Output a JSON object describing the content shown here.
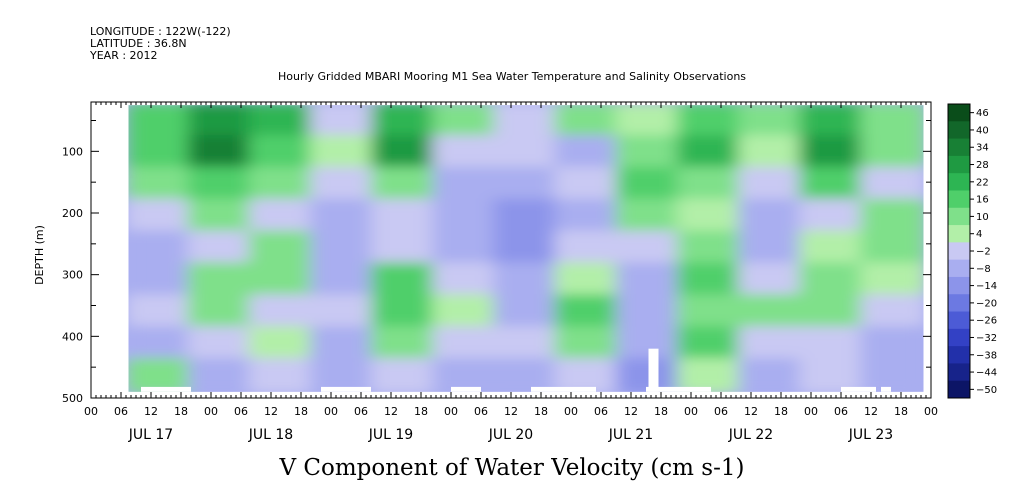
{
  "chart_data": {
    "type": "heatmap",
    "header": {
      "longitude": "LONGITUDE : 122W(-122)",
      "latitude": "LATITUDE : 36.8N",
      "year": "YEAR : 2012"
    },
    "title": "Hourly Gridded MBARI Mooring M1 Sea Water Temperature and Salinity Observations",
    "xlabel": "V Component of Water Velocity (cm s-1)",
    "ylabel": "DEPTH (m)",
    "y_ticks": [
      100,
      200,
      300,
      400,
      500
    ],
    "ylim": [
      500,
      20
    ],
    "y_inverted": true,
    "x_hour_ticks": [
      "00",
      "06",
      "12",
      "18",
      "00",
      "06",
      "12",
      "18",
      "00",
      "06",
      "12",
      "18",
      "00",
      "06",
      "12",
      "18",
      "00",
      "06",
      "12",
      "18",
      "00",
      "06",
      "12",
      "18",
      "00",
      "06",
      "12",
      "18",
      "00"
    ],
    "x_date_labels": [
      "JUL 17",
      "JUL 18",
      "JUL 19",
      "JUL 20",
      "JUL 21",
      "JUL 22",
      "JUL 23"
    ],
    "xlim_hours": [
      0,
      168
    ],
    "data_extent_hours": [
      7.5,
      166.5
    ],
    "data_extent_depth": [
      25,
      490
    ],
    "colorbar_labels": [
      "46",
      "40",
      "34",
      "28",
      "22",
      "16",
      "10",
      "4",
      "-2",
      "-8",
      "-14",
      "-20",
      "-26",
      "-32",
      "-38",
      "-44",
      "-50"
    ],
    "colorbar_colors": [
      "#0a4d1a",
      "#12672a",
      "#188035",
      "#1f9a42",
      "#2db553",
      "#4fcf6a",
      "#7fe08a",
      "#b2efa8",
      "#c9c9f3",
      "#a9aef0",
      "#8c94ea",
      "#6c79e2",
      "#4c5bd6",
      "#3341c5",
      "#2230aa",
      "#17238a",
      "#0c1566"
    ],
    "approx_cells": {
      "rows_depth_m": [
        50,
        100,
        150,
        200,
        250,
        300,
        350,
        400,
        450
      ],
      "cols_hours": [
        12,
        24,
        36,
        48,
        60,
        72,
        84,
        96,
        108,
        120,
        132,
        144,
        156
      ],
      "values": [
        [
          10,
          22,
          16,
          -4,
          18,
          4,
          -6,
          8,
          2,
          10,
          4,
          18,
          8
        ],
        [
          14,
          28,
          10,
          2,
          22,
          -4,
          -8,
          -10,
          6,
          16,
          2,
          22,
          4
        ],
        [
          6,
          10,
          4,
          -8,
          6,
          -10,
          -12,
          -6,
          10,
          8,
          -6,
          10,
          -4
        ],
        [
          -8,
          4,
          -6,
          -14,
          -4,
          -14,
          -16,
          -12,
          4,
          -2,
          -10,
          -4,
          8
        ],
        [
          -10,
          -4,
          6,
          -10,
          -8,
          -10,
          -18,
          -8,
          -6,
          4,
          -12,
          2,
          6
        ],
        [
          -12,
          6,
          4,
          -12,
          10,
          -6,
          -14,
          -2,
          -10,
          10,
          -8,
          6,
          2
        ],
        [
          -6,
          8,
          -4,
          -8,
          12,
          -2,
          -10,
          10,
          -14,
          6,
          8,
          4,
          -6
        ],
        [
          -14,
          -8,
          2,
          -10,
          6,
          -8,
          -6,
          4,
          -12,
          10,
          -8,
          -6,
          -14
        ],
        [
          8,
          -12,
          -6,
          -14,
          -4,
          -10,
          -12,
          -4,
          -16,
          2,
          -10,
          -8,
          -12
        ]
      ]
    }
  }
}
